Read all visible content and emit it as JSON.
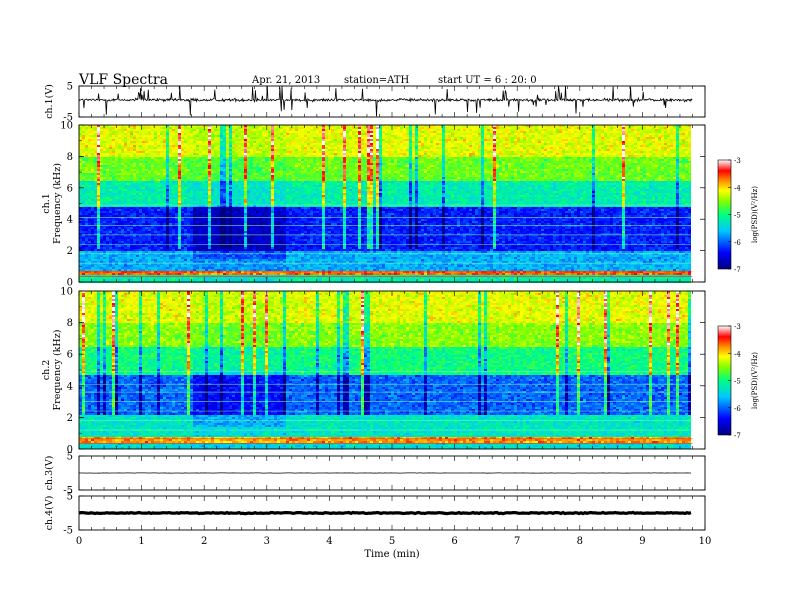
{
  "header": {
    "title": "VLF  Spectra",
    "date": "Apr. 21, 2013",
    "station": "station=ATH",
    "start_ut": "start  UT =   6  : 20: 0"
  },
  "chart_data": {
    "type": "heatmap",
    "x_axis": {
      "label": "Time  (min)",
      "range": [
        0,
        10
      ],
      "ticks": [
        0,
        1,
        2,
        3,
        4,
        5,
        6,
        7,
        8,
        9,
        10
      ],
      "data_end": 9.8
    },
    "panels": [
      {
        "id": "ch1-waveform",
        "type": "line",
        "ylabel": "ch.1(V)",
        "ylim": [
          -5,
          5
        ],
        "yticks": [
          "5",
          "-5"
        ],
        "baseline_v": 0.5,
        "spike_rate": "high"
      },
      {
        "id": "ch1-spectrogram",
        "type": "heatmap",
        "ylabel": "ch.1\nFrequency  (kHz)",
        "ylim": [
          0,
          10
        ],
        "yticks": [
          0,
          2,
          4,
          6,
          8,
          10
        ],
        "colorbar": {
          "label": "log(PSD)(V²/Hz)",
          "range": [
            -7,
            -3
          ],
          "ticks": [
            "-3",
            "-4",
            "-5",
            "-6",
            "-7"
          ]
        },
        "frequency_profile_log_psd": [
          {
            "f_khz_from": 0,
            "f_khz_to": 0.5,
            "log_psd": -5.2
          },
          {
            "f_khz_from": 0.5,
            "f_khz_to": 0.8,
            "log_psd": -3.6
          },
          {
            "f_khz_from": 0.8,
            "f_khz_to": 2.0,
            "log_psd": -5.7
          },
          {
            "f_khz_from": 2.0,
            "f_khz_to": 4.8,
            "log_psd": -6.3
          },
          {
            "f_khz_from": 4.8,
            "f_khz_to": 6.5,
            "log_psd": -5.2
          },
          {
            "f_khz_from": 6.5,
            "f_khz_to": 8.0,
            "log_psd": -4.6
          },
          {
            "f_khz_from": 8.0,
            "f_khz_to": 10.0,
            "log_psd": -4.2
          }
        ]
      },
      {
        "id": "ch2-spectrogram",
        "type": "heatmap",
        "ylabel": "ch.2\nFrequency  (kHz)",
        "ylim": [
          0,
          10
        ],
        "yticks": [
          0,
          2,
          4,
          6,
          8,
          10
        ],
        "colorbar": {
          "label": "log(PSD)(V²/Hz)",
          "range": [
            -7,
            -3
          ],
          "ticks": [
            "-3",
            "-4",
            "-5",
            "-6",
            "-7"
          ]
        },
        "frequency_profile_log_psd": [
          {
            "f_khz_from": 0,
            "f_khz_to": 0.5,
            "log_psd": -5.4
          },
          {
            "f_khz_from": 0.5,
            "f_khz_to": 0.8,
            "log_psd": -3.8
          },
          {
            "f_khz_from": 0.8,
            "f_khz_to": 2.2,
            "log_psd": -5.3
          },
          {
            "f_khz_from": 2.2,
            "f_khz_to": 4.8,
            "log_psd": -6.0
          },
          {
            "f_khz_from": 4.8,
            "f_khz_to": 6.5,
            "log_psd": -5.0
          },
          {
            "f_khz_from": 6.5,
            "f_khz_to": 8.0,
            "log_psd": -4.5
          },
          {
            "f_khz_from": 8.0,
            "f_khz_to": 10.0,
            "log_psd": -4.2
          }
        ]
      },
      {
        "id": "ch3-waveform",
        "type": "line",
        "ylabel": "ch.3(V)",
        "ylim": [
          -5,
          5
        ],
        "yticks": [
          "5",
          "-5"
        ],
        "baseline_v": 0.0,
        "spike_rate": "none"
      },
      {
        "id": "ch4-waveform",
        "type": "line",
        "ylabel": "ch.4(V)",
        "ylim": [
          -5,
          5
        ],
        "yticks": [
          "5",
          "-5"
        ],
        "baseline_v": 0.0,
        "spike_rate": "thick"
      }
    ]
  },
  "colors": {
    "colormap": [
      "#000080",
      "#0000ff",
      "#00c8ff",
      "#00ff80",
      "#80ff00",
      "#ffff00",
      "#ff8000",
      "#ff0000",
      "#ffffff"
    ],
    "frame": "#000000",
    "trace": "#000000"
  }
}
